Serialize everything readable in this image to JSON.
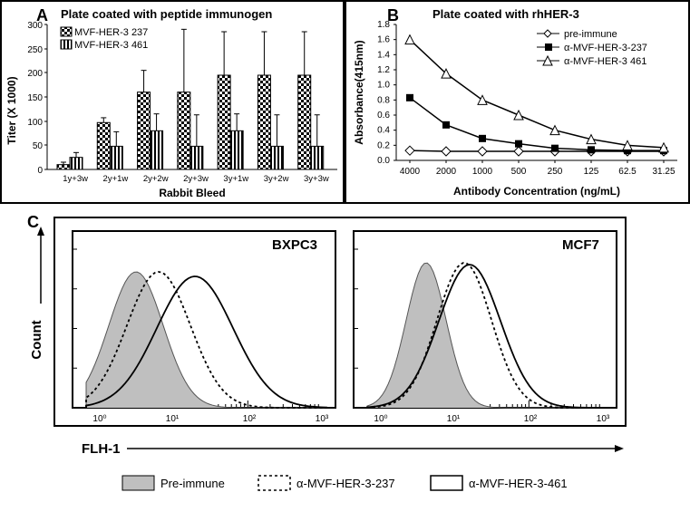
{
  "panelA": {
    "type": "bar",
    "label": "A",
    "title": "Plate coated with peptide immunogen",
    "categories": [
      "1y+3w",
      "2y+1w",
      "2y+2w",
      "2y+3w",
      "3y+1w",
      "3y+2w",
      "3y+3w"
    ],
    "series": [
      {
        "name": "MVF-HER-3 237",
        "values": [
          10,
          97,
          160,
          160,
          195,
          195,
          195
        ],
        "errors": [
          5,
          10,
          45,
          130,
          90,
          90,
          90
        ],
        "pattern": "checker"
      },
      {
        "name": "MVF-HER-3 461",
        "values": [
          25,
          48,
          80,
          48,
          80,
          48,
          48
        ],
        "errors": [
          10,
          30,
          35,
          65,
          35,
          65,
          65
        ],
        "pattern": "stripes"
      }
    ],
    "ylabel": "Titer (X 1000)",
    "xlabel": "Rabbit Bleed",
    "ylim": [
      0,
      300
    ],
    "ytick_step": 50,
    "bar_color": "#000",
    "background": "#fff"
  },
  "panelB": {
    "type": "line",
    "label": "B",
    "title": "Plate coated with rhHER-3",
    "xvalues": [
      4000,
      2000,
      1000,
      500,
      250,
      125,
      62.5,
      31.25
    ],
    "series": [
      {
        "name": "pre-immune",
        "marker": "diamond-open",
        "values": [
          0.13,
          0.12,
          0.12,
          0.12,
          0.12,
          0.12,
          0.12,
          0.12
        ]
      },
      {
        "name": "α-MVF-HER-3-237",
        "marker": "square-filled",
        "values": [
          0.83,
          0.47,
          0.29,
          0.22,
          0.16,
          0.14,
          0.13,
          0.13
        ]
      },
      {
        "name": "α-MVF-HER-3 461",
        "marker": "triangle-open",
        "values": [
          1.6,
          1.15,
          0.8,
          0.6,
          0.4,
          0.28,
          0.2,
          0.17
        ]
      }
    ],
    "ylabel": "Absorbance(415nm)",
    "xlabel": "Antibody Concentration (ng/mL)",
    "ylim": [
      0,
      1.8
    ],
    "ytick_step": 0.2
  },
  "panelC": {
    "type": "flow-histogram",
    "label": "C",
    "subplots": [
      {
        "name": "BXPC3"
      },
      {
        "name": "MCF7"
      }
    ],
    "xlabel": "FLH-1",
    "ylabel": "Count",
    "legend": [
      {
        "name": "Pre-immune",
        "style": "filled",
        "color": "#bfbfbf"
      },
      {
        "name": "α-MVF-HER-3-237",
        "style": "dotted"
      },
      {
        "name": "α-MVF-HER-3-461",
        "style": "solid"
      }
    ],
    "x_log_ticks": [
      "10⁰",
      "10¹",
      "10²",
      "10³"
    ]
  }
}
